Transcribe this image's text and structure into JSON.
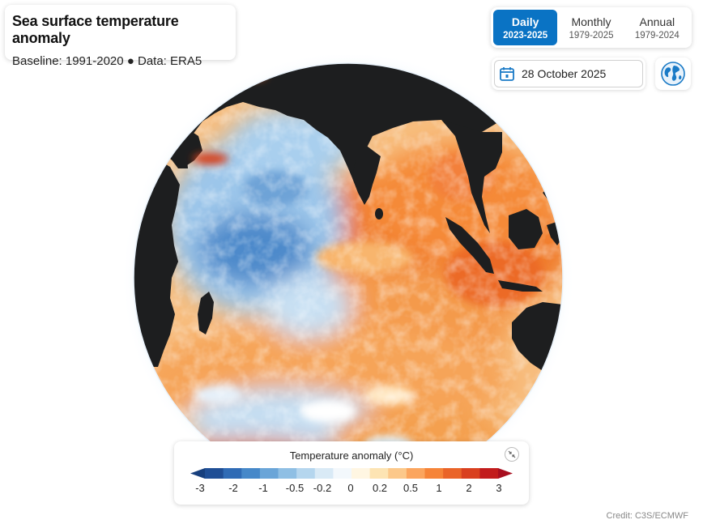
{
  "header": {
    "title": "Sea surface temperature anomaly",
    "subtitle": "Baseline: 1991-2020 ● Data: ERA5"
  },
  "tabs": [
    {
      "label": "Daily",
      "range": "2023-2025",
      "active": true
    },
    {
      "label": "Monthly",
      "range": "1979-2025",
      "active": false
    },
    {
      "label": "Annual",
      "range": "1979-2024",
      "active": false
    }
  ],
  "date": {
    "value": "28 October 2025",
    "icon": "calendar-icon"
  },
  "view_toggle": {
    "icon": "globe-icon"
  },
  "legend": {
    "title": "Temperature anomaly (°C)",
    "ticks": [
      "-3",
      "-2",
      "-1",
      "-0.5",
      "-0.2",
      "0",
      "0.2",
      "0.5",
      "1",
      "2",
      "3"
    ],
    "colors": [
      "#1f4e95",
      "#2f6bb5",
      "#4688c9",
      "#6aa5d8",
      "#8fbfe4",
      "#b5d6ee",
      "#d9eaf6",
      "#f3f8fc",
      "#fff6e2",
      "#fde4b3",
      "#fcc88a",
      "#fba55e",
      "#f68438",
      "#ea6428",
      "#d9401f",
      "#c21c1c"
    ],
    "low_arrow_color": "#173f7d",
    "high_arrow_color": "#a80f1f"
  },
  "credit": "Credit: C3S/ECMWF",
  "map_colors": {
    "land": "#1d1e1f",
    "warm": "#f2792a",
    "cool": "#7fb0de"
  }
}
